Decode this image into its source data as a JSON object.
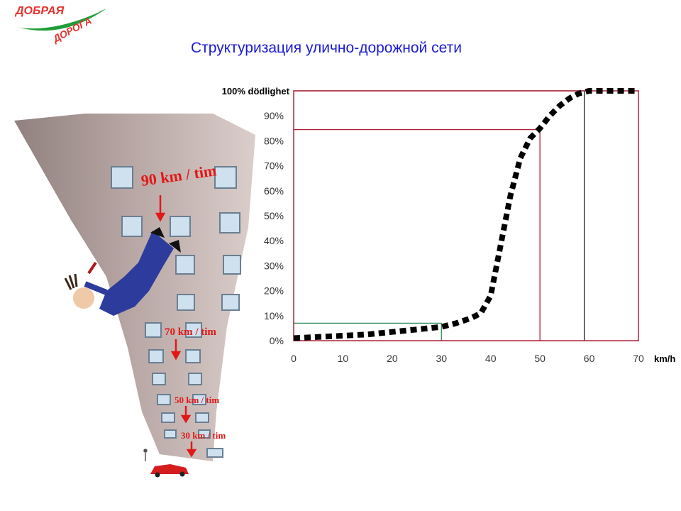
{
  "logo": {
    "line1": "ДОБРАЯ",
    "line2": "ДОРОГА"
  },
  "title": "Структуризация улично-дорожной сети",
  "illustration": {
    "labels": [
      "90 km / tim",
      "70 km / tim",
      "50 km / tim",
      "30 km / tim"
    ]
  },
  "chart_data": {
    "type": "line",
    "ylabel": "100% dödlighet",
    "xlabel": "km/h",
    "x_ticks": [
      "0",
      "10",
      "20",
      "30",
      "40",
      "50",
      "60",
      "70"
    ],
    "y_ticks": [
      "0%",
      "10%",
      "20%",
      "30%",
      "40%",
      "50%",
      "60%",
      "70%",
      "80%",
      "90%"
    ],
    "xlim": [
      0,
      70
    ],
    "ylim": [
      0,
      100
    ],
    "series": [
      {
        "x": [
          0,
          5,
          10,
          15,
          20,
          25,
          30,
          33,
          36,
          38,
          40,
          42,
          44,
          46,
          48,
          50,
          52,
          54,
          56,
          58,
          60,
          65,
          70
        ],
        "y": [
          1,
          1.5,
          2,
          2.5,
          3.5,
          4.5,
          5.5,
          7,
          9,
          11,
          18,
          38,
          58,
          73,
          81,
          85,
          90,
          94,
          97,
          99,
          100,
          100,
          100
        ]
      }
    ],
    "reference_lines": [
      {
        "x": 30,
        "y": 7,
        "color": "#2e8b57"
      },
      {
        "x": 50,
        "y": 84.5,
        "color": "#b0203a"
      },
      {
        "x": 59,
        "y": 100,
        "color": "#222222"
      }
    ],
    "frame_color": "#b0203a",
    "grid": false
  }
}
